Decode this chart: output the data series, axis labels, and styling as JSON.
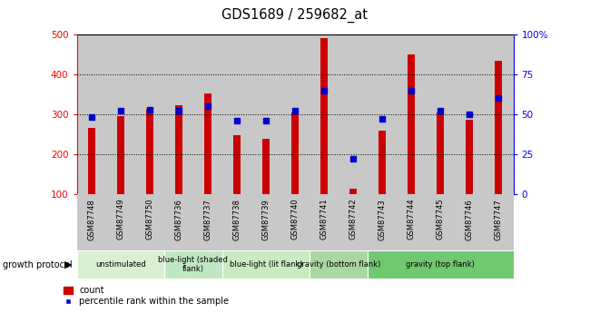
{
  "title": "GDS1689 / 259682_at",
  "samples": [
    "GSM87748",
    "GSM87749",
    "GSM87750",
    "GSM87736",
    "GSM87737",
    "GSM87738",
    "GSM87739",
    "GSM87740",
    "GSM87741",
    "GSM87742",
    "GSM87743",
    "GSM87744",
    "GSM87745",
    "GSM87746",
    "GSM87747"
  ],
  "counts": [
    265,
    295,
    313,
    323,
    352,
    248,
    238,
    305,
    490,
    113,
    258,
    450,
    305,
    287,
    435
  ],
  "percentiles": [
    48,
    52,
    53,
    52,
    55,
    46,
    46,
    52,
    65,
    22,
    47,
    65,
    52,
    50,
    60
  ],
  "groups": [
    {
      "label": "unstimulated",
      "start": 0,
      "end": 3,
      "color": "#d8f0d0"
    },
    {
      "label": "blue-light (shaded\nflank)",
      "start": 3,
      "end": 5,
      "color": "#c0e8c0"
    },
    {
      "label": "blue-light (lit flank)",
      "start": 5,
      "end": 8,
      "color": "#c8ecc0"
    },
    {
      "label": "gravity (bottom flank)",
      "start": 8,
      "end": 10,
      "color": "#a8d8a0"
    },
    {
      "label": "gravity (top flank)",
      "start": 10,
      "end": 15,
      "color": "#70c870"
    }
  ],
  "ylim_left": [
    100,
    500
  ],
  "ylim_right": [
    0,
    100
  ],
  "yticks_left": [
    100,
    200,
    300,
    400,
    500
  ],
  "yticks_right": [
    0,
    25,
    50,
    75,
    100
  ],
  "bar_color": "#cc0000",
  "dot_color": "#0000cc",
  "bar_width": 0.25,
  "col_bg_color": "#c8c8c8",
  "plot_bg_color": "#ffffff"
}
